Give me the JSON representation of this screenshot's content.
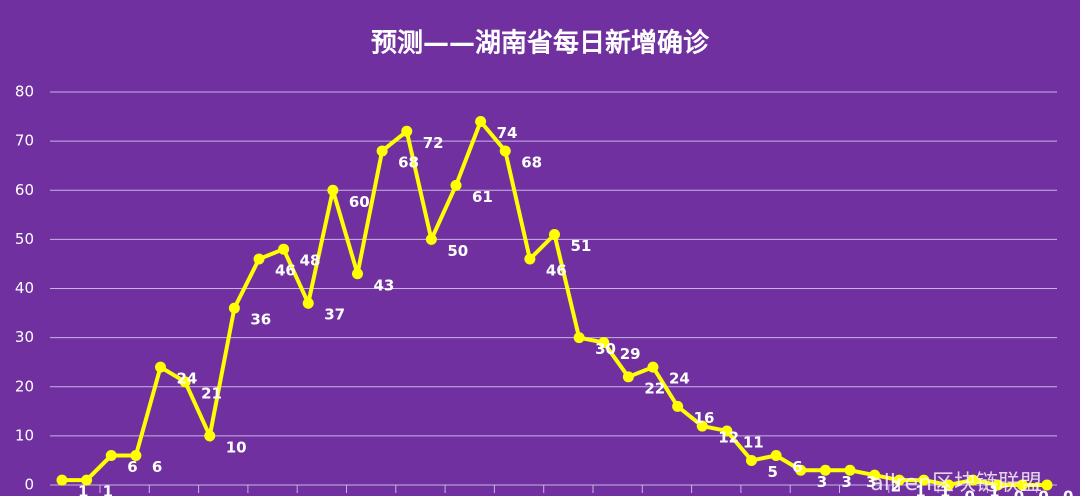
{
  "chart_data": {
    "type": "line",
    "title": "预测——湖南省每日新增确诊",
    "values": [
      1,
      1,
      6,
      6,
      24,
      21,
      10,
      36,
      46,
      48,
      37,
      60,
      43,
      68,
      72,
      50,
      61,
      74,
      68,
      46,
      51,
      30,
      29,
      22,
      24,
      16,
      12,
      11,
      5,
      6,
      3,
      3,
      3,
      2,
      1,
      1,
      0,
      1,
      0,
      0,
      0
    ],
    "color": "#ffff00",
    "ylim": [
      0,
      80
    ],
    "yticks": [
      0,
      10,
      20,
      30,
      40,
      50,
      60,
      70,
      80
    ],
    "grid": true,
    "watermark": "allren区块链联盟"
  }
}
